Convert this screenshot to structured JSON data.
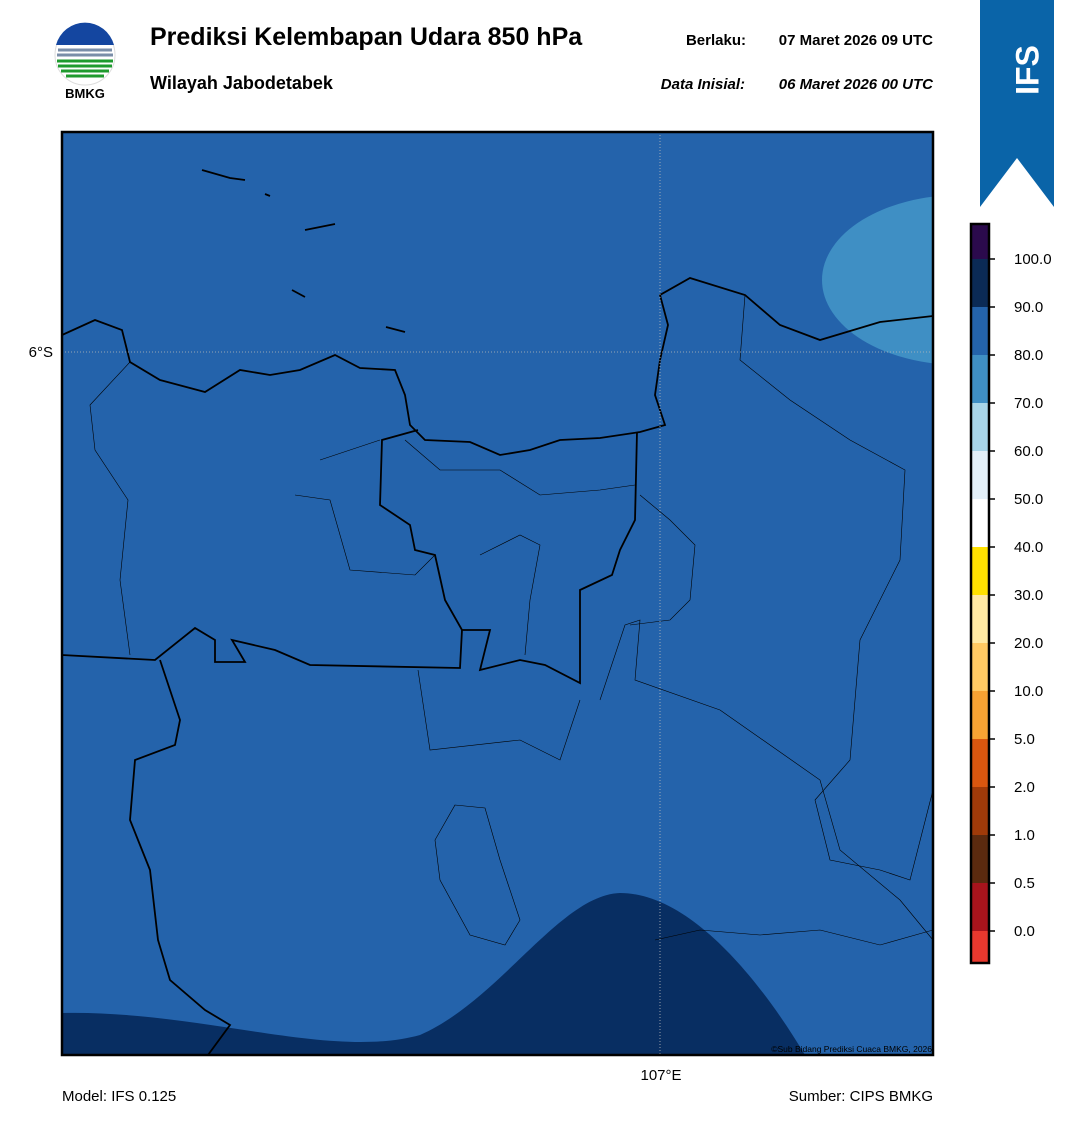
{
  "header": {
    "logo_text": "BMKG",
    "title": "Prediksi Kelembapan Udara 850 hPa",
    "subtitle": "Wilayah Jabodetabek",
    "valid_label": "Berlaku:",
    "valid_value": "07 Maret 2026 09 UTC",
    "init_label": "Data Inisial:",
    "init_value": "06 Maret 2026 00 UTC",
    "badge": "IFS"
  },
  "map": {
    "lat_label": "6°S",
    "lon_label": "107°E",
    "credit": "©Sub Bidang Prediksi Cuaca BMKG, 2026"
  },
  "colorbar": {
    "colors": [
      "#2b0a4c",
      "#0b2a55",
      "#2463ab",
      "#3f8fc4",
      "#a8d5e8",
      "#e4f0f8",
      "#ffffff",
      "#ffe100",
      "#ffe9a3",
      "#ffc963",
      "#f7a233",
      "#d9560f",
      "#9f3a09",
      "#5b2a0f",
      "#a8141c",
      "#e8382e"
    ],
    "labels": [
      "100.0",
      "90.0",
      "80.0",
      "70.0",
      "60.0",
      "50.0",
      "40.0",
      "30.0",
      "20.0",
      "10.0",
      "5.0",
      "2.0",
      "1.0",
      "0.5",
      "0.0"
    ]
  },
  "footer": {
    "model": "Model: IFS 0.125",
    "source": "Sumber: CIPS BMKG"
  }
}
